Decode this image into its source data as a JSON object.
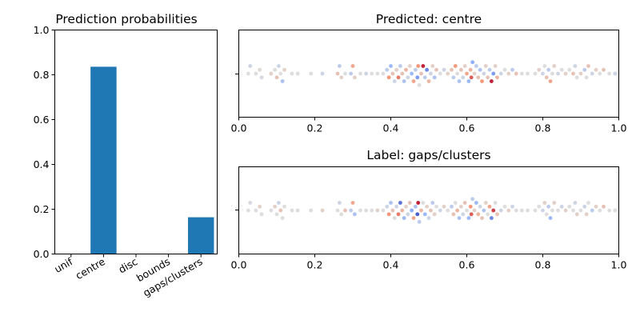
{
  "chart_data": [
    {
      "type": "bar",
      "title": "Prediction probabilities",
      "categories": [
        "unif",
        "centre",
        "disc",
        "bounds",
        "gaps/clusters"
      ],
      "values": [
        0.0,
        0.836,
        0.0,
        0.0,
        0.164
      ],
      "ylim": [
        0,
        1
      ],
      "yticks": [
        "0.0",
        "0.2",
        "0.4",
        "0.6",
        "0.8",
        "1.0"
      ],
      "bar_color": "#1f77b4",
      "xlabel": "",
      "ylabel": "",
      "grid": false
    },
    {
      "type": "scatter",
      "subtype": "swarm",
      "title": "Predicted: centre",
      "xlim": [
        0,
        1
      ],
      "xticks": [
        "0.0",
        "0.2",
        "0.4",
        "0.6",
        "0.8",
        "1.0"
      ],
      "colormap": "coolwarm",
      "grid": false,
      "points": [
        {
          "x": 0.025,
          "c": 0.5
        },
        {
          "x": 0.03,
          "c": 0.45
        },
        {
          "x": 0.045,
          "c": 0.5
        },
        {
          "x": 0.055,
          "c": 0.52
        },
        {
          "x": 0.06,
          "c": 0.48
        },
        {
          "x": 0.085,
          "c": 0.55
        },
        {
          "x": 0.095,
          "c": 0.5
        },
        {
          "x": 0.1,
          "c": 0.6
        },
        {
          "x": 0.105,
          "c": 0.45
        },
        {
          "x": 0.11,
          "c": 0.5
        },
        {
          "x": 0.115,
          "c": 0.35
        },
        {
          "x": 0.12,
          "c": 0.55
        },
        {
          "x": 0.14,
          "c": 0.5
        },
        {
          "x": 0.155,
          "c": 0.5
        },
        {
          "x": 0.19,
          "c": 0.5
        },
        {
          "x": 0.22,
          "c": 0.45
        },
        {
          "x": 0.26,
          "c": 0.6
        },
        {
          "x": 0.265,
          "c": 0.4
        },
        {
          "x": 0.27,
          "c": 0.55
        },
        {
          "x": 0.28,
          "c": 0.5
        },
        {
          "x": 0.295,
          "c": 0.4
        },
        {
          "x": 0.3,
          "c": 0.7
        },
        {
          "x": 0.305,
          "c": 0.55
        },
        {
          "x": 0.32,
          "c": 0.5
        },
        {
          "x": 0.335,
          "c": 0.45
        },
        {
          "x": 0.35,
          "c": 0.5
        },
        {
          "x": 0.365,
          "c": 0.5
        },
        {
          "x": 0.38,
          "c": 0.5
        },
        {
          "x": 0.39,
          "c": 0.4
        },
        {
          "x": 0.395,
          "c": 0.75
        },
        {
          "x": 0.4,
          "c": 0.3
        },
        {
          "x": 0.405,
          "c": 0.6
        },
        {
          "x": 0.41,
          "c": 0.45
        },
        {
          "x": 0.415,
          "c": 0.55
        },
        {
          "x": 0.42,
          "c": 0.8
        },
        {
          "x": 0.425,
          "c": 0.4
        },
        {
          "x": 0.43,
          "c": 0.6
        },
        {
          "x": 0.435,
          "c": 0.35
        },
        {
          "x": 0.44,
          "c": 0.65
        },
        {
          "x": 0.445,
          "c": 0.45
        },
        {
          "x": 0.45,
          "c": 0.55
        },
        {
          "x": 0.455,
          "c": 0.3
        },
        {
          "x": 0.46,
          "c": 0.7
        },
        {
          "x": 0.465,
          "c": 0.4
        },
        {
          "x": 0.47,
          "c": 0.2
        },
        {
          "x": 0.472,
          "c": 0.75
        },
        {
          "x": 0.475,
          "c": 0.5
        },
        {
          "x": 0.48,
          "c": 0.6
        },
        {
          "x": 0.485,
          "c": 0.95
        },
        {
          "x": 0.49,
          "c": 0.4
        },
        {
          "x": 0.495,
          "c": 0.15
        },
        {
          "x": 0.5,
          "c": 0.65
        },
        {
          "x": 0.505,
          "c": 0.45
        },
        {
          "x": 0.51,
          "c": 0.55
        },
        {
          "x": 0.515,
          "c": 0.35
        },
        {
          "x": 0.52,
          "c": 0.6
        },
        {
          "x": 0.53,
          "c": 0.5
        },
        {
          "x": 0.54,
          "c": 0.45
        },
        {
          "x": 0.55,
          "c": 0.55
        },
        {
          "x": 0.56,
          "c": 0.6
        },
        {
          "x": 0.565,
          "c": 0.4
        },
        {
          "x": 0.57,
          "c": 0.75
        },
        {
          "x": 0.575,
          "c": 0.5
        },
        {
          "x": 0.58,
          "c": 0.35
        },
        {
          "x": 0.585,
          "c": 0.6
        },
        {
          "x": 0.59,
          "c": 0.45
        },
        {
          "x": 0.595,
          "c": 0.55
        },
        {
          "x": 0.6,
          "c": 0.7
        },
        {
          "x": 0.605,
          "c": 0.3
        },
        {
          "x": 0.61,
          "c": 0.65
        },
        {
          "x": 0.612,
          "c": 0.85
        },
        {
          "x": 0.615,
          "c": 0.25
        },
        {
          "x": 0.62,
          "c": 0.55
        },
        {
          "x": 0.625,
          "c": 0.4
        },
        {
          "x": 0.63,
          "c": 0.6
        },
        {
          "x": 0.635,
          "c": 0.35
        },
        {
          "x": 0.64,
          "c": 0.75
        },
        {
          "x": 0.645,
          "c": 0.45
        },
        {
          "x": 0.65,
          "c": 0.55
        },
        {
          "x": 0.655,
          "c": 0.6
        },
        {
          "x": 0.66,
          "c": 0.4
        },
        {
          "x": 0.665,
          "c": 0.95
        },
        {
          "x": 0.67,
          "c": 0.2
        },
        {
          "x": 0.675,
          "c": 0.55
        },
        {
          "x": 0.68,
          "c": 0.65
        },
        {
          "x": 0.69,
          "c": 0.45
        },
        {
          "x": 0.7,
          "c": 0.5
        },
        {
          "x": 0.71,
          "c": 0.55
        },
        {
          "x": 0.72,
          "c": 0.4
        },
        {
          "x": 0.73,
          "c": 0.6
        },
        {
          "x": 0.745,
          "c": 0.5
        },
        {
          "x": 0.76,
          "c": 0.5
        },
        {
          "x": 0.78,
          "c": 0.5
        },
        {
          "x": 0.79,
          "c": 0.55
        },
        {
          "x": 0.8,
          "c": 0.45
        },
        {
          "x": 0.805,
          "c": 0.5
        },
        {
          "x": 0.81,
          "c": 0.6
        },
        {
          "x": 0.815,
          "c": 0.4
        },
        {
          "x": 0.82,
          "c": 0.7
        },
        {
          "x": 0.825,
          "c": 0.5
        },
        {
          "x": 0.83,
          "c": 0.55
        },
        {
          "x": 0.84,
          "c": 0.45
        },
        {
          "x": 0.85,
          "c": 0.5
        },
        {
          "x": 0.86,
          "c": 0.55
        },
        {
          "x": 0.87,
          "c": 0.5
        },
        {
          "x": 0.88,
          "c": 0.6
        },
        {
          "x": 0.885,
          "c": 0.45
        },
        {
          "x": 0.89,
          "c": 0.5
        },
        {
          "x": 0.9,
          "c": 0.55
        },
        {
          "x": 0.91,
          "c": 0.4
        },
        {
          "x": 0.915,
          "c": 0.5
        },
        {
          "x": 0.92,
          "c": 0.6
        },
        {
          "x": 0.93,
          "c": 0.45
        },
        {
          "x": 0.94,
          "c": 0.55
        },
        {
          "x": 0.95,
          "c": 0.5
        },
        {
          "x": 0.96,
          "c": 0.6
        },
        {
          "x": 0.975,
          "c": 0.5
        },
        {
          "x": 0.99,
          "c": 0.45
        }
      ]
    },
    {
      "type": "scatter",
      "subtype": "swarm",
      "title": "Label: gaps/clusters",
      "xlim": [
        0,
        1
      ],
      "xticks": [
        "0.0",
        "0.2",
        "0.4",
        "0.6",
        "0.8",
        "1.0"
      ],
      "colormap": "coolwarm",
      "grid": false,
      "points": [
        {
          "x": 0.025,
          "c": 0.5
        },
        {
          "x": 0.03,
          "c": 0.48
        },
        {
          "x": 0.045,
          "c": 0.5
        },
        {
          "x": 0.055,
          "c": 0.55
        },
        {
          "x": 0.06,
          "c": 0.5
        },
        {
          "x": 0.085,
          "c": 0.5
        },
        {
          "x": 0.095,
          "c": 0.55
        },
        {
          "x": 0.1,
          "c": 0.5
        },
        {
          "x": 0.105,
          "c": 0.45
        },
        {
          "x": 0.11,
          "c": 0.6
        },
        {
          "x": 0.115,
          "c": 0.5
        },
        {
          "x": 0.12,
          "c": 0.5
        },
        {
          "x": 0.14,
          "c": 0.5
        },
        {
          "x": 0.155,
          "c": 0.5
        },
        {
          "x": 0.19,
          "c": 0.5
        },
        {
          "x": 0.22,
          "c": 0.55
        },
        {
          "x": 0.26,
          "c": 0.5
        },
        {
          "x": 0.265,
          "c": 0.45
        },
        {
          "x": 0.27,
          "c": 0.5
        },
        {
          "x": 0.28,
          "c": 0.6
        },
        {
          "x": 0.295,
          "c": 0.4
        },
        {
          "x": 0.3,
          "c": 0.7
        },
        {
          "x": 0.305,
          "c": 0.35
        },
        {
          "x": 0.32,
          "c": 0.5
        },
        {
          "x": 0.335,
          "c": 0.5
        },
        {
          "x": 0.35,
          "c": 0.5
        },
        {
          "x": 0.365,
          "c": 0.55
        },
        {
          "x": 0.38,
          "c": 0.5
        },
        {
          "x": 0.39,
          "c": 0.45
        },
        {
          "x": 0.395,
          "c": 0.75
        },
        {
          "x": 0.4,
          "c": 0.35
        },
        {
          "x": 0.405,
          "c": 0.6
        },
        {
          "x": 0.41,
          "c": 0.5
        },
        {
          "x": 0.415,
          "c": 0.45
        },
        {
          "x": 0.42,
          "c": 0.8
        },
        {
          "x": 0.425,
          "c": 0.1
        },
        {
          "x": 0.43,
          "c": 0.65
        },
        {
          "x": 0.435,
          "c": 0.3
        },
        {
          "x": 0.44,
          "c": 0.55
        },
        {
          "x": 0.445,
          "c": 0.45
        },
        {
          "x": 0.45,
          "c": 0.6
        },
        {
          "x": 0.455,
          "c": 0.25
        },
        {
          "x": 0.46,
          "c": 0.7
        },
        {
          "x": 0.465,
          "c": 0.35
        },
        {
          "x": 0.47,
          "c": 0.05
        },
        {
          "x": 0.472,
          "c": 0.95
        },
        {
          "x": 0.475,
          "c": 0.4
        },
        {
          "x": 0.48,
          "c": 0.65
        },
        {
          "x": 0.485,
          "c": 0.5
        },
        {
          "x": 0.49,
          "c": 0.3
        },
        {
          "x": 0.495,
          "c": 0.55
        },
        {
          "x": 0.5,
          "c": 0.45
        },
        {
          "x": 0.505,
          "c": 0.6
        },
        {
          "x": 0.51,
          "c": 0.4
        },
        {
          "x": 0.515,
          "c": 0.55
        },
        {
          "x": 0.52,
          "c": 0.5
        },
        {
          "x": 0.53,
          "c": 0.45
        },
        {
          "x": 0.54,
          "c": 0.55
        },
        {
          "x": 0.55,
          "c": 0.5
        },
        {
          "x": 0.56,
          "c": 0.4
        },
        {
          "x": 0.565,
          "c": 0.6
        },
        {
          "x": 0.57,
          "c": 0.5
        },
        {
          "x": 0.575,
          "c": 0.65
        },
        {
          "x": 0.58,
          "c": 0.35
        },
        {
          "x": 0.585,
          "c": 0.55
        },
        {
          "x": 0.59,
          "c": 0.45
        },
        {
          "x": 0.595,
          "c": 0.6
        },
        {
          "x": 0.6,
          "c": 0.5
        },
        {
          "x": 0.605,
          "c": 0.3
        },
        {
          "x": 0.61,
          "c": 0.75
        },
        {
          "x": 0.612,
          "c": 0.85
        },
        {
          "x": 0.615,
          "c": 0.4
        },
        {
          "x": 0.62,
          "c": 0.55
        },
        {
          "x": 0.625,
          "c": 0.3
        },
        {
          "x": 0.63,
          "c": 0.65
        },
        {
          "x": 0.635,
          "c": 0.45
        },
        {
          "x": 0.64,
          "c": 0.6
        },
        {
          "x": 0.645,
          "c": 0.35
        },
        {
          "x": 0.65,
          "c": 0.55
        },
        {
          "x": 0.655,
          "c": 0.5
        },
        {
          "x": 0.66,
          "c": 0.7
        },
        {
          "x": 0.665,
          "c": 0.15
        },
        {
          "x": 0.67,
          "c": 0.9
        },
        {
          "x": 0.675,
          "c": 0.5
        },
        {
          "x": 0.68,
          "c": 0.6
        },
        {
          "x": 0.69,
          "c": 0.45
        },
        {
          "x": 0.7,
          "c": 0.5
        },
        {
          "x": 0.71,
          "c": 0.55
        },
        {
          "x": 0.72,
          "c": 0.45
        },
        {
          "x": 0.73,
          "c": 0.5
        },
        {
          "x": 0.745,
          "c": 0.5
        },
        {
          "x": 0.76,
          "c": 0.5
        },
        {
          "x": 0.78,
          "c": 0.5
        },
        {
          "x": 0.79,
          "c": 0.5
        },
        {
          "x": 0.8,
          "c": 0.45
        },
        {
          "x": 0.805,
          "c": 0.55
        },
        {
          "x": 0.81,
          "c": 0.5
        },
        {
          "x": 0.815,
          "c": 0.4
        },
        {
          "x": 0.82,
          "c": 0.3
        },
        {
          "x": 0.825,
          "c": 0.5
        },
        {
          "x": 0.83,
          "c": 0.55
        },
        {
          "x": 0.84,
          "c": 0.5
        },
        {
          "x": 0.85,
          "c": 0.45
        },
        {
          "x": 0.86,
          "c": 0.55
        },
        {
          "x": 0.87,
          "c": 0.5
        },
        {
          "x": 0.88,
          "c": 0.5
        },
        {
          "x": 0.885,
          "c": 0.45
        },
        {
          "x": 0.89,
          "c": 0.55
        },
        {
          "x": 0.9,
          "c": 0.5
        },
        {
          "x": 0.91,
          "c": 0.45
        },
        {
          "x": 0.915,
          "c": 0.55
        },
        {
          "x": 0.92,
          "c": 0.5
        },
        {
          "x": 0.93,
          "c": 0.4
        },
        {
          "x": 0.94,
          "c": 0.55
        },
        {
          "x": 0.95,
          "c": 0.5
        },
        {
          "x": 0.96,
          "c": 0.6
        },
        {
          "x": 0.975,
          "c": 0.5
        },
        {
          "x": 0.99,
          "c": 0.5
        }
      ]
    }
  ]
}
